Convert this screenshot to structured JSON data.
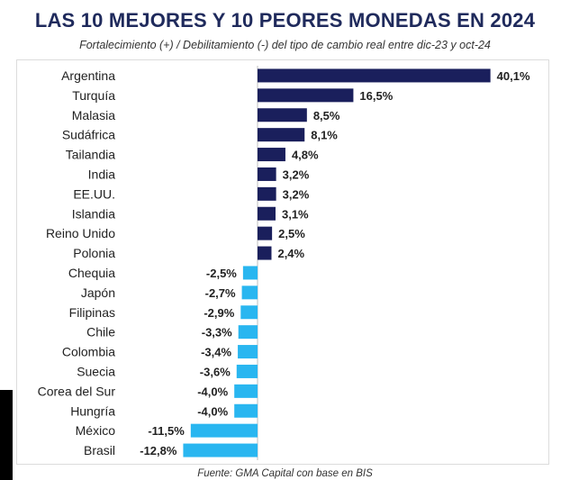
{
  "chart_data": {
    "type": "bar",
    "orientation": "horizontal",
    "title": "LAS 10 MEJORES Y 10 PEORES MONEDAS EN 2024",
    "subtitle": "Fortalecimiento (+) / Debilitamiento (-) del tipo de cambio real entre dic-23 y oct-24",
    "source": "Fuente: GMA Capital con base en BIS",
    "categories": [
      "Argentina",
      "Turquía",
      "Malasia",
      "Sudáfrica",
      "Tailandia",
      "India",
      "EE.UU.",
      "Islandia",
      "Reino Unido",
      "Polonia",
      "Chequia",
      "Japón",
      "Filipinas",
      "Chile",
      "Colombia",
      "Suecia",
      "Corea del Sur",
      "Hungría",
      "México",
      "Brasil"
    ],
    "values": [
      40.1,
      16.5,
      8.5,
      8.1,
      4.8,
      3.2,
      3.2,
      3.1,
      2.5,
      2.4,
      -2.5,
      -2.7,
      -2.9,
      -3.3,
      -3.4,
      -3.6,
      -4.0,
      -4.0,
      -11.5,
      -12.8
    ],
    "value_labels": [
      "40,1%",
      "16,5%",
      "8,5%",
      "8,1%",
      "4,8%",
      "3,2%",
      "3,2%",
      "3,1%",
      "2,5%",
      "2,4%",
      "-2,5%",
      "-2,7%",
      "-2,9%",
      "-3,3%",
      "-3,4%",
      "-3,6%",
      "-4,0%",
      "-4,0%",
      "-11,5%",
      "-12,8%"
    ],
    "colors": {
      "positive": "#1a1f5c",
      "negative": "#29b6f0",
      "title": "#1f2a5c"
    },
    "grid": false,
    "legend": "none"
  }
}
